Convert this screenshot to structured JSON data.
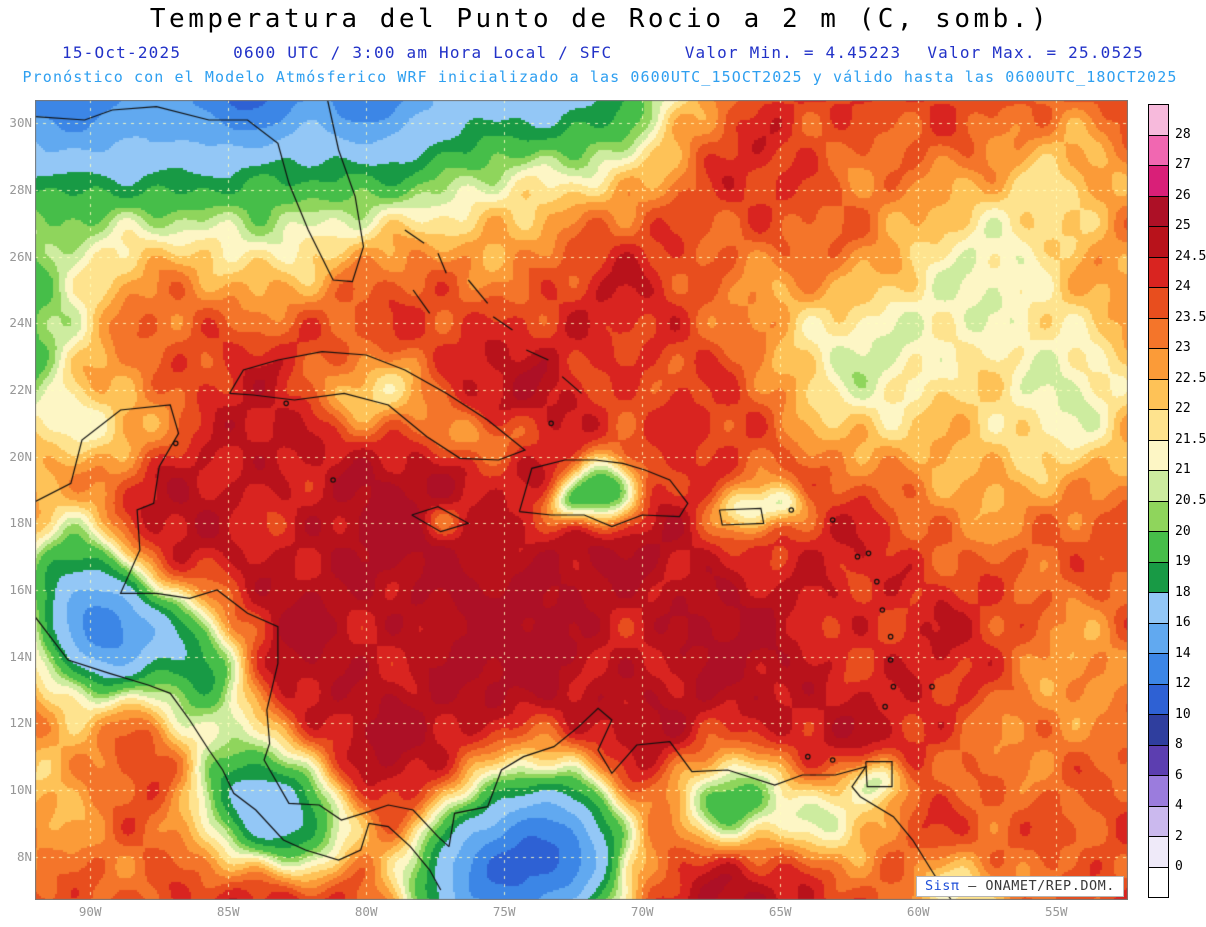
{
  "header": {
    "title": "Temperatura del Punto de Rocio a 2 m (C, somb.)",
    "line2": {
      "date": "15-Oct-2025",
      "time": "0600 UTC / 3:00 am Hora Local / SFC",
      "min": "Valor Min. = 4.45223",
      "max": "Valor Max. = 25.0525"
    },
    "line3": "Pronóstico con el Modelo Atmósferico WRF inicializado a las 0600UTC_15OCT2025 y válido hasta las  0600UTC_18OCT2025"
  },
  "credit": {
    "brand": "Sisπ",
    "org": "– ONAMET/REP.DOM."
  },
  "chart_data": {
    "type": "heatmap",
    "title": "Temperatura del Punto de Rocio a 2 m (C, somb.)",
    "variable": "2 m dew point temperature (°C, shaded)",
    "model": "WRF",
    "init_time": "0600UTC_15OCT2025",
    "valid_until": "0600UTC_18OCT2025",
    "value_min": 4.45223,
    "value_max": 25.0525,
    "lon_range": [
      -92,
      -52.4
    ],
    "lat_range": [
      6.7,
      30.7
    ],
    "lat_ticks": [
      30,
      28,
      26,
      24,
      22,
      20,
      18,
      16,
      14,
      12,
      10,
      8
    ],
    "lat_tick_labels": [
      "30N",
      "28N",
      "26N",
      "24N",
      "22N",
      "20N",
      "18N",
      "16N",
      "14N",
      "12N",
      "10N",
      "8N"
    ],
    "lon_ticks": [
      -90,
      -85,
      -80,
      -75,
      -70,
      -65,
      -60,
      -55
    ],
    "lon_tick_labels": [
      "90W",
      "85W",
      "80W",
      "75W",
      "70W",
      "65W",
      "60W",
      "55W"
    ],
    "grid": {
      "color": "rgba(255,255,190,0.85)",
      "dash": [
        3,
        5
      ]
    },
    "colorbar": {
      "levels": [
        0,
        2,
        4,
        6,
        8,
        10,
        12,
        14,
        16,
        18,
        19,
        20,
        20.5,
        21,
        21.5,
        22,
        22.5,
        23,
        23.5,
        24,
        24.5,
        25,
        26,
        27,
        28
      ],
      "colors": [
        "#FFFFFF",
        "#EFEAF9",
        "#CBB9EE",
        "#9B7CDD",
        "#5C3EB0",
        "#2F3E9E",
        "#2E61D4",
        "#3C86E6",
        "#61A9F0",
        "#93C7F6",
        "#189A45",
        "#46BE49",
        "#8FD55C",
        "#CDEC9F",
        "#FDF6C5",
        "#FEE38E",
        "#FEC257",
        "#FB9B38",
        "#F4752A",
        "#E84E1E",
        "#D92420",
        "#B8121B",
        "#AD1026",
        "#D91F78",
        "#F167B1",
        "#F7BADC"
      ],
      "tick_labels": [
        "28",
        "27",
        "26",
        "25",
        "24.5",
        "24",
        "23.5",
        "23",
        "22.5",
        "22",
        "21.5",
        "21",
        "20.5",
        "20",
        "19",
        "18",
        "16",
        "14",
        "12",
        "10",
        "8",
        "6",
        "4",
        "2",
        "0"
      ]
    },
    "field": {
      "base": 24.6,
      "blobs": [
        {
          "x": -89.5,
          "y": 32.5,
          "sx": 8.5,
          "sy": 4.2,
          "a": -8.5
        },
        {
          "x": -78.5,
          "y": 32.8,
          "sx": 6.0,
          "sy": 3.6,
          "a": -5.5
        },
        {
          "x": -72.5,
          "y": 31.8,
          "sx": 2.8,
          "sy": 2.0,
          "a": -4.0
        },
        {
          "x": -91.3,
          "y": 30.9,
          "sx": 1.8,
          "sy": 1.6,
          "a": -4.5
        },
        {
          "x": -84.3,
          "y": 30.8,
          "sx": 1.3,
          "sy": 1.1,
          "a": -4.0
        },
        {
          "x": -79.8,
          "y": 30.9,
          "sx": 1.1,
          "sy": 1.0,
          "a": -3.5
        },
        {
          "x": -93.0,
          "y": 23.0,
          "sx": 2.0,
          "sy": 2.0,
          "a": -5.0
        },
        {
          "x": -90.6,
          "y": 15.6,
          "sx": 1.5,
          "sy": 1.8,
          "a": -7.0
        },
        {
          "x": -89.3,
          "y": 14.6,
          "sx": 1.1,
          "sy": 1.2,
          "a": -5.0
        },
        {
          "x": -87.8,
          "y": 14.8,
          "sx": 1.4,
          "sy": 1.0,
          "a": -4.0
        },
        {
          "x": -85.9,
          "y": 13.3,
          "sx": 1.3,
          "sy": 1.4,
          "a": -5.0
        },
        {
          "x": -84.2,
          "y": 9.8,
          "sx": 1.6,
          "sy": 1.3,
          "a": -6.0
        },
        {
          "x": -82.3,
          "y": 8.8,
          "sx": 1.5,
          "sy": 1.1,
          "a": -4.5
        },
        {
          "x": -76.3,
          "y": 7.3,
          "sx": 1.6,
          "sy": 1.6,
          "a": -8.0
        },
        {
          "x": -74.2,
          "y": 7.8,
          "sx": 1.5,
          "sy": 1.8,
          "a": -8.0
        },
        {
          "x": -72.3,
          "y": 8.3,
          "sx": 1.4,
          "sy": 1.6,
          "a": -7.0
        },
        {
          "x": -66.8,
          "y": 9.6,
          "sx": 1.5,
          "sy": 1.0,
          "a": -5.0
        },
        {
          "x": -63.0,
          "y": 9.2,
          "sx": 1.4,
          "sy": 1.0,
          "a": -3.5
        },
        {
          "x": -71.3,
          "y": 19.0,
          "sx": 0.9,
          "sy": 0.7,
          "a": -6.0
        },
        {
          "x": -72.7,
          "y": 18.6,
          "sx": 0.6,
          "sy": 0.45,
          "a": -3.0
        },
        {
          "x": -79.8,
          "y": 21.9,
          "sx": 1.8,
          "sy": 0.8,
          "a": -2.2
        },
        {
          "x": -75.8,
          "y": 20.6,
          "sx": 1.3,
          "sy": 0.6,
          "a": -2.0
        },
        {
          "x": -77.3,
          "y": 18.1,
          "sx": 0.6,
          "sy": 0.35,
          "a": -1.2
        },
        {
          "x": -59.5,
          "y": 22.5,
          "sx": 5.5,
          "sy": 3.2,
          "a": -2.6
        },
        {
          "x": -62.5,
          "y": 23.5,
          "sx": 2.2,
          "sy": 1.5,
          "a": -1.2
        },
        {
          "x": -56.0,
          "y": 27.5,
          "sx": 3.5,
          "sy": 2.5,
          "a": -2.2
        },
        {
          "x": -54.0,
          "y": 21.0,
          "sx": 2.5,
          "sy": 2.5,
          "a": -1.5
        },
        {
          "x": -54.5,
          "y": 12.0,
          "sx": 3.0,
          "sy": 3.0,
          "a": -1.8
        },
        {
          "x": -89.5,
          "y": 20.8,
          "sx": 1.6,
          "sy": 0.9,
          "a": -2.2
        },
        {
          "x": -91.5,
          "y": 9.0,
          "sx": 2.5,
          "sy": 2.5,
          "a": -2.0
        },
        {
          "x": -58.5,
          "y": 6.8,
          "sx": 1.5,
          "sy": 1.0,
          "a": -3.5
        },
        {
          "x": -61.3,
          "y": 10.3,
          "sx": 0.7,
          "sy": 0.5,
          "a": -3.0
        },
        {
          "x": -66.2,
          "y": 18.4,
          "sx": 0.8,
          "sy": 0.5,
          "a": -2.5
        },
        {
          "x": -64.8,
          "y": 18.6,
          "sx": 0.6,
          "sy": 0.4,
          "a": -2.0
        },
        {
          "x": -75.0,
          "y": 15.0,
          "sx": 6.0,
          "sy": 4.0,
          "a": 0.5
        }
      ],
      "noise": [
        {
          "a": 0.4,
          "fx": 1.9,
          "px": 0.5,
          "fy": 2.1,
          "py": 0.0
        },
        {
          "a": 0.3,
          "fx": 3.3,
          "px": 2.0,
          "fy": 3.1,
          "py": 1.0
        },
        {
          "a": 0.5,
          "fx": 0.75,
          "px": 1.2,
          "fy": 0.85,
          "py": 0.3
        }
      ]
    },
    "coastlines": {
      "paths": [
        [
          [
            -92,
            30.2
          ],
          [
            -90.2,
            30.1
          ],
          [
            -89.2,
            30.4
          ],
          [
            -87.6,
            30.5
          ],
          [
            -85.7,
            30.1
          ],
          [
            -84.3,
            30.1
          ],
          [
            -83.2,
            29.4
          ],
          [
            -82.8,
            28.2
          ],
          [
            -82.1,
            26.8
          ],
          [
            -81.2,
            25.3
          ],
          [
            -80.5,
            25.25
          ],
          [
            -80.1,
            26.3
          ],
          [
            -80.4,
            27.8
          ],
          [
            -81.0,
            29.2
          ],
          [
            -81.4,
            30.7
          ]
        ],
        [
          [
            -84.95,
            21.9
          ],
          [
            -84.45,
            22.6
          ],
          [
            -83.2,
            22.9
          ],
          [
            -81.6,
            23.15
          ],
          [
            -80.0,
            23.05
          ],
          [
            -78.6,
            22.6
          ],
          [
            -77.1,
            21.9
          ],
          [
            -75.6,
            21.1
          ],
          [
            -74.25,
            20.2
          ],
          [
            -75.2,
            19.9
          ],
          [
            -76.6,
            19.95
          ],
          [
            -77.8,
            20.6
          ],
          [
            -79.2,
            21.55
          ],
          [
            -80.8,
            21.9
          ],
          [
            -82.6,
            21.7
          ],
          [
            -84.1,
            21.85
          ],
          [
            -84.95,
            21.9
          ]
        ],
        [
          [
            -74.45,
            18.35
          ],
          [
            -74.0,
            19.65
          ],
          [
            -72.8,
            19.9
          ],
          [
            -71.7,
            19.9
          ],
          [
            -70.7,
            19.8
          ],
          [
            -69.9,
            19.6
          ],
          [
            -69.0,
            19.3
          ],
          [
            -68.35,
            18.6
          ],
          [
            -68.65,
            18.2
          ],
          [
            -70.0,
            18.25
          ],
          [
            -71.1,
            17.9
          ],
          [
            -72.1,
            18.25
          ],
          [
            -73.3,
            18.25
          ],
          [
            -74.45,
            18.35
          ]
        ],
        [
          [
            -78.35,
            18.25
          ],
          [
            -77.4,
            18.5
          ],
          [
            -76.3,
            18.0
          ],
          [
            -77.3,
            17.75
          ],
          [
            -78.35,
            18.25
          ]
        ],
        [
          [
            -67.2,
            18.4
          ],
          [
            -65.7,
            18.45
          ],
          [
            -65.6,
            18.0
          ],
          [
            -67.1,
            17.95
          ],
          [
            -67.2,
            18.4
          ]
        ],
        [
          [
            -92,
            18.65
          ],
          [
            -90.7,
            19.2
          ],
          [
            -90.3,
            20.5
          ],
          [
            -88.9,
            21.4
          ],
          [
            -87.1,
            21.55
          ],
          [
            -86.8,
            20.7
          ],
          [
            -87.5,
            19.7
          ],
          [
            -87.7,
            18.6
          ],
          [
            -88.3,
            18.4
          ],
          [
            -88.2,
            17.2
          ],
          [
            -88.9,
            15.9
          ],
          [
            -87.6,
            15.9
          ],
          [
            -86.4,
            15.75
          ],
          [
            -85.4,
            16.0
          ],
          [
            -84.3,
            15.3
          ],
          [
            -83.2,
            14.9
          ],
          [
            -83.2,
            13.8
          ],
          [
            -83.6,
            12.4
          ],
          [
            -83.5,
            11.4
          ],
          [
            -83.7,
            10.9
          ],
          [
            -82.8,
            9.6
          ],
          [
            -81.7,
            9.55
          ],
          [
            -80.9,
            9.1
          ],
          [
            -79.9,
            9.35
          ],
          [
            -79.2,
            9.55
          ],
          [
            -78.3,
            9.4
          ],
          [
            -77.4,
            8.6
          ],
          [
            -77.0,
            8.3
          ]
        ],
        [
          [
            -92,
            15.2
          ],
          [
            -90.8,
            13.9
          ],
          [
            -89.3,
            13.5
          ],
          [
            -87.9,
            13.15
          ],
          [
            -87.1,
            12.9
          ],
          [
            -86.4,
            12.1
          ],
          [
            -85.7,
            11.2
          ],
          [
            -85.2,
            10.6
          ],
          [
            -84.8,
            9.9
          ],
          [
            -84.0,
            9.4
          ],
          [
            -83.0,
            8.5
          ],
          [
            -82.2,
            8.2
          ],
          [
            -81.0,
            7.9
          ],
          [
            -80.2,
            8.2
          ],
          [
            -79.9,
            9.0
          ],
          [
            -79.2,
            8.9
          ],
          [
            -78.4,
            8.3
          ],
          [
            -77.7,
            7.6
          ],
          [
            -77.3,
            7.0
          ]
        ],
        [
          [
            -77.0,
            8.3
          ],
          [
            -76.8,
            9.3
          ],
          [
            -75.6,
            9.5
          ],
          [
            -75.1,
            10.6
          ],
          [
            -74.3,
            11.0
          ],
          [
            -73.2,
            11.3
          ],
          [
            -72.3,
            11.9
          ],
          [
            -71.6,
            12.45
          ],
          [
            -71.1,
            12.1
          ],
          [
            -71.6,
            11.2
          ],
          [
            -71.1,
            10.5
          ],
          [
            -70.2,
            11.35
          ],
          [
            -69.0,
            11.45
          ],
          [
            -68.2,
            10.55
          ],
          [
            -66.9,
            10.6
          ],
          [
            -65.2,
            10.15
          ],
          [
            -64.2,
            10.45
          ],
          [
            -63.0,
            10.45
          ],
          [
            -61.9,
            10.7
          ],
          [
            -62.4,
            10.1
          ],
          [
            -62.1,
            9.8
          ],
          [
            -60.9,
            9.2
          ],
          [
            -60.2,
            8.5
          ],
          [
            -59.3,
            7.3
          ],
          [
            -58.8,
            6.7
          ]
        ],
        [
          [
            -61.9,
            10.85
          ],
          [
            -60.95,
            10.85
          ],
          [
            -60.95,
            10.1
          ],
          [
            -61.85,
            10.1
          ],
          [
            -61.9,
            10.85
          ]
        ],
        [
          [
            -78.6,
            26.8
          ],
          [
            -77.9,
            26.4
          ]
        ],
        [
          [
            -77.4,
            26.1
          ],
          [
            -77.1,
            25.5
          ]
        ],
        [
          [
            -78.3,
            25.0
          ],
          [
            -77.7,
            24.3
          ]
        ],
        [
          [
            -76.3,
            25.3
          ],
          [
            -75.6,
            24.6
          ]
        ],
        [
          [
            -75.4,
            24.2
          ],
          [
            -74.7,
            23.8
          ]
        ],
        [
          [
            -74.2,
            23.2
          ],
          [
            -73.4,
            22.9
          ]
        ],
        [
          [
            -72.9,
            22.4
          ],
          [
            -72.2,
            21.9
          ]
        ]
      ],
      "islets": [
        [
          -64.6,
          18.4
        ],
        [
          -63.1,
          18.1
        ],
        [
          -62.2,
          17.0
        ],
        [
          -61.8,
          17.1
        ],
        [
          -61.5,
          16.25
        ],
        [
          -61.3,
          15.4
        ],
        [
          -61.0,
          14.6
        ],
        [
          -61.0,
          13.9
        ],
        [
          -60.9,
          13.1
        ],
        [
          -59.5,
          13.1
        ],
        [
          -61.2,
          12.5
        ],
        [
          -64.0,
          11.0
        ],
        [
          -63.1,
          10.9
        ],
        [
          -81.2,
          19.3
        ],
        [
          -82.9,
          21.6
        ],
        [
          -86.9,
          20.4
        ],
        [
          -73.3,
          21.0
        ]
      ]
    }
  }
}
